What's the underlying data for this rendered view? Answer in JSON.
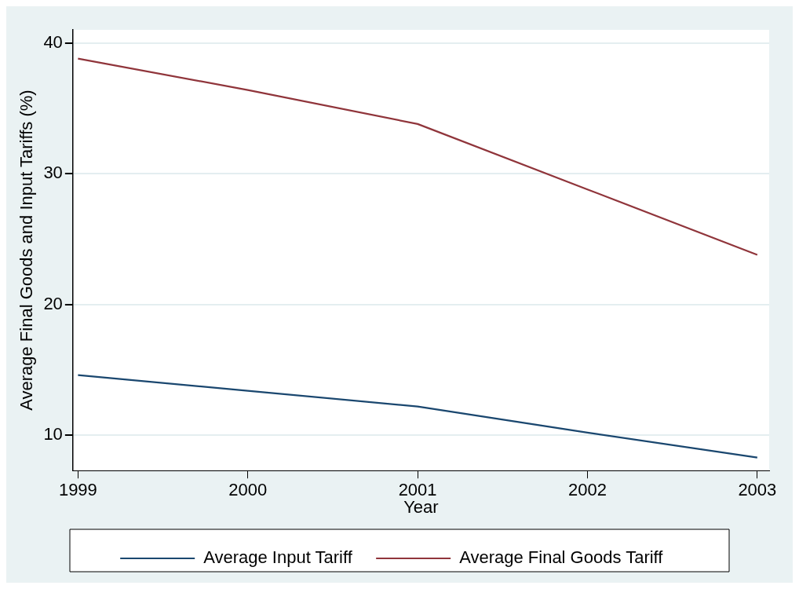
{
  "chart_data": {
    "type": "line",
    "xlabel": "Year",
    "ylabel": "Average Final Goods and Input Tariffs (%)",
    "x": [
      1999,
      2000,
      2001,
      2002,
      2003
    ],
    "series": [
      {
        "name": "Average Input Tariff",
        "color": "#1a476f",
        "values": [
          14.6,
          13.4,
          12.2,
          10.2,
          8.3
        ]
      },
      {
        "name": "Average Final Goods Tariff",
        "color": "#90353b",
        "values": [
          38.8,
          36.4,
          33.8,
          28.8,
          23.8
        ]
      }
    ],
    "xlim": [
      1998.97,
      2003.07
    ],
    "xticks": [
      1999,
      2000,
      2001,
      2002,
      2003
    ],
    "ylim": [
      7.3,
      41
    ],
    "yticks": [
      10,
      20,
      30,
      40
    ],
    "grid": "y",
    "legend": "bottom",
    "marker": "none",
    "line_style": "solid"
  }
}
